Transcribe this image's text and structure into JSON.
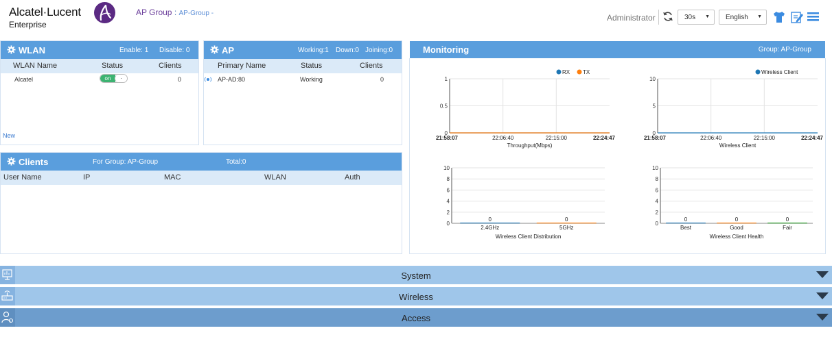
{
  "header": {
    "brand": "Alcatel·Lucent",
    "brand_sub": "Enterprise",
    "group_label": "AP Group",
    "group_sep": ":",
    "group_value": "AP-Group -",
    "user": "Administrator",
    "refresh_interval": "30s",
    "language": "English",
    "icons": [
      "refresh-icon",
      "shirt-icon",
      "edit-icon",
      "menu-icon"
    ]
  },
  "wlan": {
    "title": "WLAN",
    "enable_text": "Enable: 1",
    "disable_text": "Disable: 0",
    "columns": [
      "WLAN Name",
      "Status",
      "Clients"
    ],
    "rows": [
      {
        "name": "Alcatel",
        "status": "on",
        "clients": "0"
      }
    ],
    "new_label": "New"
  },
  "ap": {
    "title": "AP",
    "working_text": "Working:1",
    "down_text": "Down:0",
    "joining_text": "Joining:0",
    "columns": [
      "Primary Name",
      "Status",
      "Clients"
    ],
    "rows": [
      {
        "name": "AP-AD:80",
        "status": "Working",
        "clients": "0"
      }
    ]
  },
  "clients": {
    "title": "Clients",
    "for_group": "For Group: AP-Group",
    "total": "Total:0",
    "columns": [
      "User Name",
      "IP",
      "MAC",
      "WLAN",
      "Auth"
    ]
  },
  "monitoring": {
    "title": "Monitoring",
    "group": "Group: AP-Group"
  },
  "chart_data": [
    {
      "type": "line",
      "xlabel": "Throughput(Mbps)",
      "x": [
        "21:58:07",
        "22:06:40",
        "22:15:00",
        "22:24:47"
      ],
      "ylim": [
        0,
        1
      ],
      "yticks": [
        "0",
        "0.5",
        "1"
      ],
      "series": [
        {
          "name": "RX",
          "color": "#1f77b4",
          "values": [
            0,
            0,
            0,
            0
          ]
        },
        {
          "name": "TX",
          "color": "#ff7f0e",
          "values": [
            0,
            0,
            0,
            0
          ]
        }
      ]
    },
    {
      "type": "line",
      "xlabel": "Wireless Client",
      "x": [
        "21:58:07",
        "22:06:40",
        "22:15:00",
        "22:24:47"
      ],
      "ylim": [
        0,
        10
      ],
      "yticks": [
        "0",
        "5",
        "10"
      ],
      "series": [
        {
          "name": "Wireless Client",
          "color": "#1f77b4",
          "values": [
            0,
            0,
            0,
            0
          ]
        }
      ]
    },
    {
      "type": "bar",
      "xlabel": "Wireless Client Distribution",
      "categories": [
        "2.4GHz",
        "5GHz"
      ],
      "values": [
        0,
        0
      ],
      "ylim": [
        0,
        10
      ],
      "yticks": [
        "0",
        "2",
        "4",
        "6",
        "8",
        "10"
      ],
      "colors": [
        "#1f77b4",
        "#ff7f0e"
      ]
    },
    {
      "type": "bar",
      "xlabel": "Wireless Client Health",
      "categories": [
        "Best",
        "Good",
        "Fair"
      ],
      "values": [
        0,
        0,
        0
      ],
      "ylim": [
        0,
        10
      ],
      "yticks": [
        "0",
        "2",
        "4",
        "6",
        "8",
        "10"
      ],
      "colors": [
        "#1f77b4",
        "#ff7f0e",
        "#2ca02c"
      ]
    }
  ],
  "accordion": [
    {
      "label": "System",
      "icon": "monitor-icon"
    },
    {
      "label": "Wireless",
      "icon": "router-icon"
    },
    {
      "label": "Access",
      "icon": "user-settings-icon"
    }
  ]
}
